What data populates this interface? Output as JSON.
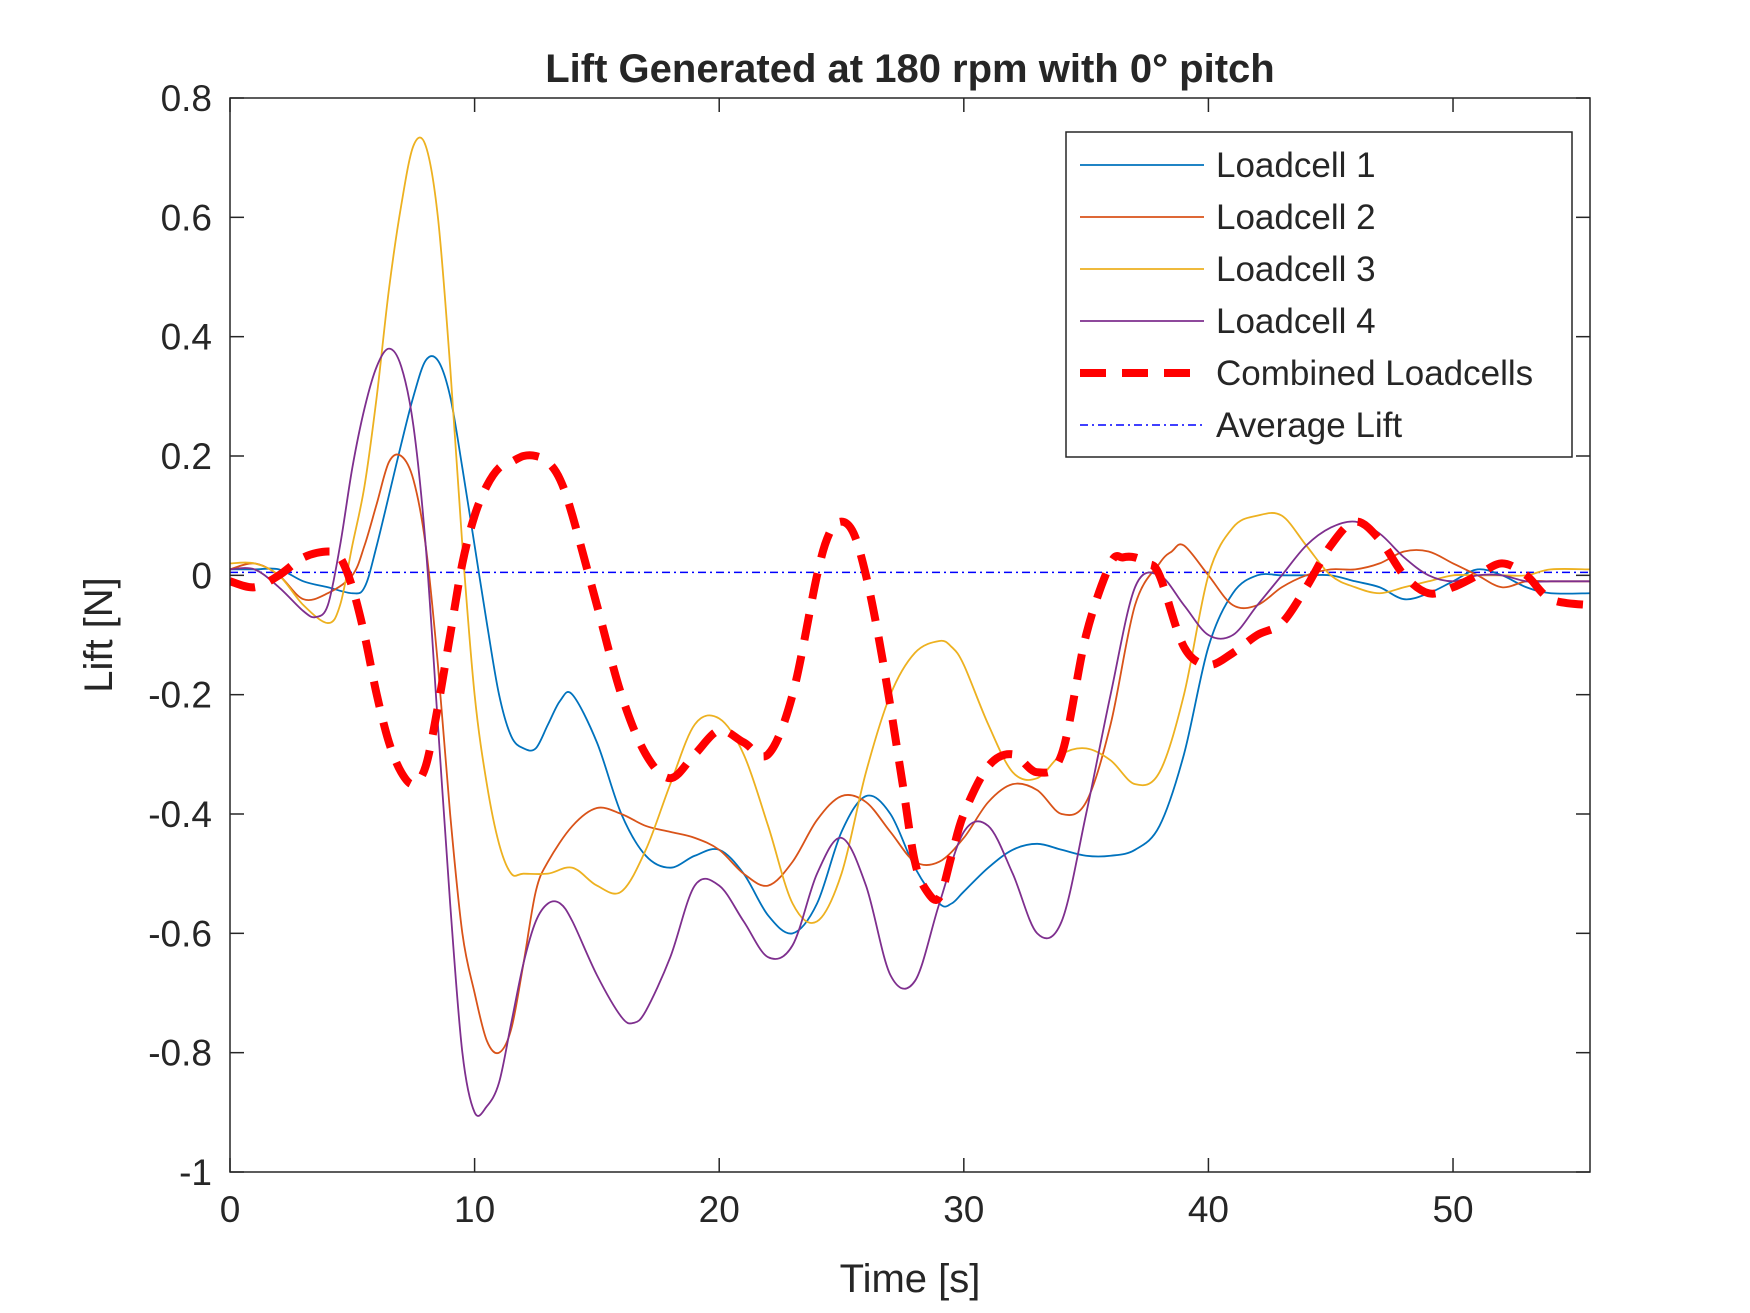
{
  "chart_data": {
    "type": "line",
    "title": "Lift Generated at 180 rpm with 0° pitch",
    "xlabel": "Time [s]",
    "ylabel": "Lift [N]",
    "xlim": [
      0,
      55.6
    ],
    "ylim": [
      -1,
      0.8
    ],
    "xticks": [
      0,
      10,
      20,
      30,
      40,
      50
    ],
    "yticks": [
      -1,
      -0.8,
      -0.6,
      -0.4,
      -0.2,
      0,
      0.2,
      0.4,
      0.6,
      0.8
    ],
    "xtick_labels": [
      "0",
      "10",
      "20",
      "30",
      "40",
      "50"
    ],
    "ytick_labels": [
      "-1",
      "-0.8",
      "-0.6",
      "-0.4",
      "-0.2",
      "0",
      "0.2",
      "0.4",
      "0.6",
      "0.8"
    ],
    "grid": false,
    "legend_position": "top-right",
    "series": [
      {
        "name": "Loadcell 1",
        "color": "#0072BD",
        "style": "solid",
        "x": [
          0,
          1,
          2,
          3,
          4,
          5,
          5.5,
          6,
          7,
          7.5,
          8,
          8.5,
          9,
          9.5,
          10,
          10.5,
          11,
          11.5,
          12,
          12.5,
          13,
          13.5,
          14,
          15,
          16,
          17,
          18,
          19,
          20,
          21,
          22,
          23,
          24,
          25,
          26,
          27,
          28,
          29,
          29.5,
          30,
          31,
          32,
          33,
          34,
          35,
          36,
          37,
          38,
          39,
          40,
          41,
          42,
          43,
          44,
          45,
          46,
          47,
          48,
          49,
          50,
          51,
          52,
          53,
          54,
          55.6
        ],
        "values": [
          0.01,
          0.01,
          0.01,
          -0.01,
          -0.02,
          -0.03,
          -0.02,
          0.05,
          0.22,
          0.3,
          0.36,
          0.36,
          0.3,
          0.18,
          0.05,
          -0.08,
          -0.2,
          -0.27,
          -0.29,
          -0.29,
          -0.25,
          -0.21,
          -0.2,
          -0.28,
          -0.4,
          -0.47,
          -0.49,
          -0.47,
          -0.46,
          -0.5,
          -0.57,
          -0.6,
          -0.55,
          -0.43,
          -0.37,
          -0.4,
          -0.49,
          -0.55,
          -0.55,
          -0.53,
          -0.49,
          -0.46,
          -0.45,
          -0.46,
          -0.47,
          -0.47,
          -0.46,
          -0.42,
          -0.3,
          -0.12,
          -0.03,
          0.0,
          0.0,
          0.0,
          0.0,
          -0.01,
          -0.02,
          -0.04,
          -0.03,
          -0.01,
          0.01,
          0.0,
          -0.02,
          -0.03,
          -0.03
        ]
      },
      {
        "name": "Loadcell 2",
        "color": "#D95319",
        "style": "solid",
        "x": [
          0,
          1,
          2,
          3,
          4,
          5,
          5.5,
          6,
          6.5,
          7,
          7.5,
          8,
          8.5,
          9,
          9.5,
          10,
          10.5,
          11,
          11.5,
          12,
          12.5,
          13,
          14,
          15,
          16,
          17,
          18,
          19,
          20,
          21,
          22,
          23,
          24,
          25,
          26,
          27,
          28,
          29,
          30,
          31,
          32,
          33,
          34,
          35,
          36,
          37,
          38,
          38.5,
          39,
          40,
          41,
          42,
          43,
          44,
          45,
          46,
          47,
          48,
          49,
          50,
          51,
          52,
          53,
          54,
          55.6
        ],
        "values": [
          0.01,
          0.02,
          0.0,
          -0.04,
          -0.03,
          0.0,
          0.05,
          0.12,
          0.19,
          0.2,
          0.16,
          0.05,
          -0.15,
          -0.4,
          -0.6,
          -0.7,
          -0.78,
          -0.8,
          -0.76,
          -0.65,
          -0.53,
          -0.48,
          -0.42,
          -0.39,
          -0.4,
          -0.42,
          -0.43,
          -0.44,
          -0.46,
          -0.5,
          -0.52,
          -0.48,
          -0.41,
          -0.37,
          -0.38,
          -0.43,
          -0.48,
          -0.48,
          -0.44,
          -0.38,
          -0.35,
          -0.36,
          -0.4,
          -0.38,
          -0.25,
          -0.05,
          0.02,
          0.04,
          0.05,
          0.0,
          -0.05,
          -0.05,
          -0.02,
          0.0,
          0.01,
          0.01,
          0.02,
          0.04,
          0.04,
          0.02,
          0.0,
          -0.02,
          -0.01,
          -0.01,
          -0.01
        ]
      },
      {
        "name": "Loadcell 3",
        "color": "#EDB120",
        "style": "solid",
        "x": [
          0,
          1,
          2,
          3,
          4,
          4.5,
          5,
          5.5,
          6,
          6.5,
          7,
          7.5,
          8,
          8.5,
          9,
          9.5,
          10,
          10.5,
          11,
          11.5,
          12,
          13,
          14,
          15,
          16,
          17,
          18,
          19,
          20,
          21,
          22,
          23,
          24,
          25,
          26,
          27,
          28,
          29,
          29.5,
          30,
          31,
          32,
          33,
          34,
          35,
          36,
          37,
          38,
          39,
          40,
          41,
          42,
          43,
          44,
          45,
          46,
          47,
          48,
          49,
          50,
          51,
          52,
          53,
          54,
          55.6
        ],
        "values": [
          0.02,
          0.02,
          0.0,
          -0.05,
          -0.08,
          -0.05,
          0.05,
          0.15,
          0.3,
          0.48,
          0.62,
          0.72,
          0.72,
          0.6,
          0.35,
          0.05,
          -0.2,
          -0.35,
          -0.45,
          -0.5,
          -0.5,
          -0.5,
          -0.49,
          -0.52,
          -0.53,
          -0.46,
          -0.35,
          -0.25,
          -0.24,
          -0.3,
          -0.42,
          -0.55,
          -0.58,
          -0.5,
          -0.33,
          -0.2,
          -0.13,
          -0.11,
          -0.12,
          -0.15,
          -0.25,
          -0.33,
          -0.34,
          -0.3,
          -0.29,
          -0.31,
          -0.35,
          -0.33,
          -0.2,
          0.0,
          0.08,
          0.1,
          0.1,
          0.05,
          0.0,
          -0.02,
          -0.03,
          -0.02,
          -0.01,
          0.0,
          0.0,
          0.0,
          0.0,
          0.01,
          0.01
        ]
      },
      {
        "name": "Loadcell 4",
        "color": "#7E2F8E",
        "style": "solid",
        "x": [
          0,
          1,
          2,
          3,
          3.5,
          4,
          4.5,
          5,
          5.5,
          6,
          6.5,
          7,
          7.5,
          8,
          8.5,
          9,
          9.5,
          10,
          10.5,
          11,
          11.5,
          12,
          12.5,
          13,
          13.5,
          14,
          15,
          16,
          16.5,
          17,
          18,
          19,
          20,
          21,
          22,
          23,
          24,
          25,
          26,
          27,
          28,
          29,
          30,
          31,
          32,
          33,
          34,
          35,
          36,
          37,
          38,
          39,
          40,
          41,
          42,
          43,
          44,
          45,
          46,
          47,
          48,
          49,
          50,
          51,
          52,
          53,
          54,
          55.6
        ],
        "values": [
          0.01,
          0.01,
          -0.02,
          -0.06,
          -0.07,
          -0.05,
          0.05,
          0.18,
          0.28,
          0.35,
          0.38,
          0.35,
          0.25,
          0.05,
          -0.25,
          -0.55,
          -0.8,
          -0.9,
          -0.89,
          -0.85,
          -0.75,
          -0.65,
          -0.58,
          -0.55,
          -0.55,
          -0.58,
          -0.67,
          -0.74,
          -0.75,
          -0.73,
          -0.64,
          -0.52,
          -0.52,
          -0.58,
          -0.64,
          -0.62,
          -0.5,
          -0.44,
          -0.52,
          -0.67,
          -0.68,
          -0.55,
          -0.43,
          -0.42,
          -0.5,
          -0.6,
          -0.58,
          -0.4,
          -0.2,
          -0.02,
          0.0,
          -0.05,
          -0.1,
          -0.1,
          -0.05,
          0.0,
          0.05,
          0.08,
          0.09,
          0.07,
          0.03,
          0.0,
          -0.01,
          0.0,
          0.0,
          -0.01,
          -0.01,
          -0.01
        ]
      },
      {
        "name": "Combined Loadcells",
        "color": "#FF0000",
        "style": "dashed",
        "x": [
          0,
          1,
          2,
          3,
          4,
          4.5,
          5,
          5.5,
          6,
          6.5,
          7,
          7.5,
          8,
          8.5,
          9,
          9.5,
          10,
          10.5,
          11,
          11.5,
          12,
          12.5,
          13,
          13.5,
          14,
          15,
          16,
          17,
          18,
          19,
          20,
          21,
          22,
          23,
          24,
          24.5,
          25,
          25.5,
          26,
          26.5,
          27,
          27.5,
          28,
          28.5,
          29,
          29.5,
          30,
          31,
          32,
          33,
          34,
          35,
          36,
          36.5,
          37,
          37.5,
          38,
          39,
          40,
          41,
          42,
          43,
          44,
          45,
          46,
          47,
          48,
          49,
          50,
          51,
          52,
          53,
          54,
          55.6
        ],
        "values": [
          -0.01,
          -0.02,
          0.0,
          0.03,
          0.04,
          0.03,
          -0.02,
          -0.1,
          -0.2,
          -0.28,
          -0.33,
          -0.35,
          -0.32,
          -0.22,
          -0.1,
          0.02,
          0.1,
          0.15,
          0.18,
          0.19,
          0.2,
          0.2,
          0.19,
          0.16,
          0.1,
          -0.05,
          -0.2,
          -0.3,
          -0.34,
          -0.3,
          -0.26,
          -0.28,
          -0.3,
          -0.2,
          0.0,
          0.07,
          0.09,
          0.07,
          0.0,
          -0.1,
          -0.22,
          -0.35,
          -0.48,
          -0.53,
          -0.54,
          -0.47,
          -0.4,
          -0.32,
          -0.3,
          -0.33,
          -0.3,
          -0.1,
          0.02,
          0.03,
          0.03,
          0.02,
          0.0,
          -0.12,
          -0.15,
          -0.13,
          -0.1,
          -0.08,
          -0.02,
          0.05,
          0.09,
          0.06,
          0.0,
          -0.03,
          -0.02,
          0.0,
          0.02,
          0.0,
          -0.04,
          -0.05
        ]
      },
      {
        "name": "Average Lift",
        "color": "#0000FF",
        "style": "dashdot",
        "x": [
          0,
          55.6
        ],
        "values": [
          0.005,
          0.005
        ]
      }
    ]
  }
}
